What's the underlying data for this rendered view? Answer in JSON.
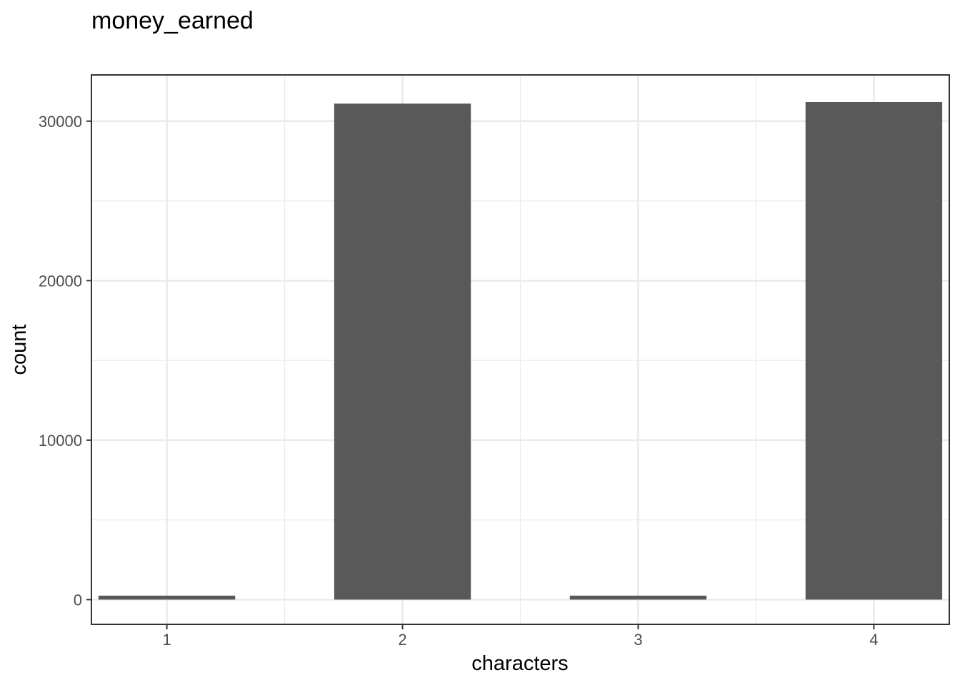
{
  "chart_data": {
    "type": "bar",
    "title": "money_earned",
    "xlabel": "characters",
    "ylabel": "count",
    "categories": [
      "1",
      "2",
      "3",
      "4"
    ],
    "x": [
      1,
      2,
      3,
      4
    ],
    "values": [
      250,
      31100,
      250,
      31200
    ],
    "xlim": [
      0.68,
      4.32
    ],
    "ylim": [
      -1550,
      32900
    ],
    "yticks": [
      0,
      10000,
      20000,
      30000
    ],
    "ytick_labels": [
      "0",
      "10000",
      "20000",
      "30000"
    ],
    "bar_color": "#595959",
    "grid": true,
    "legend": "none"
  }
}
